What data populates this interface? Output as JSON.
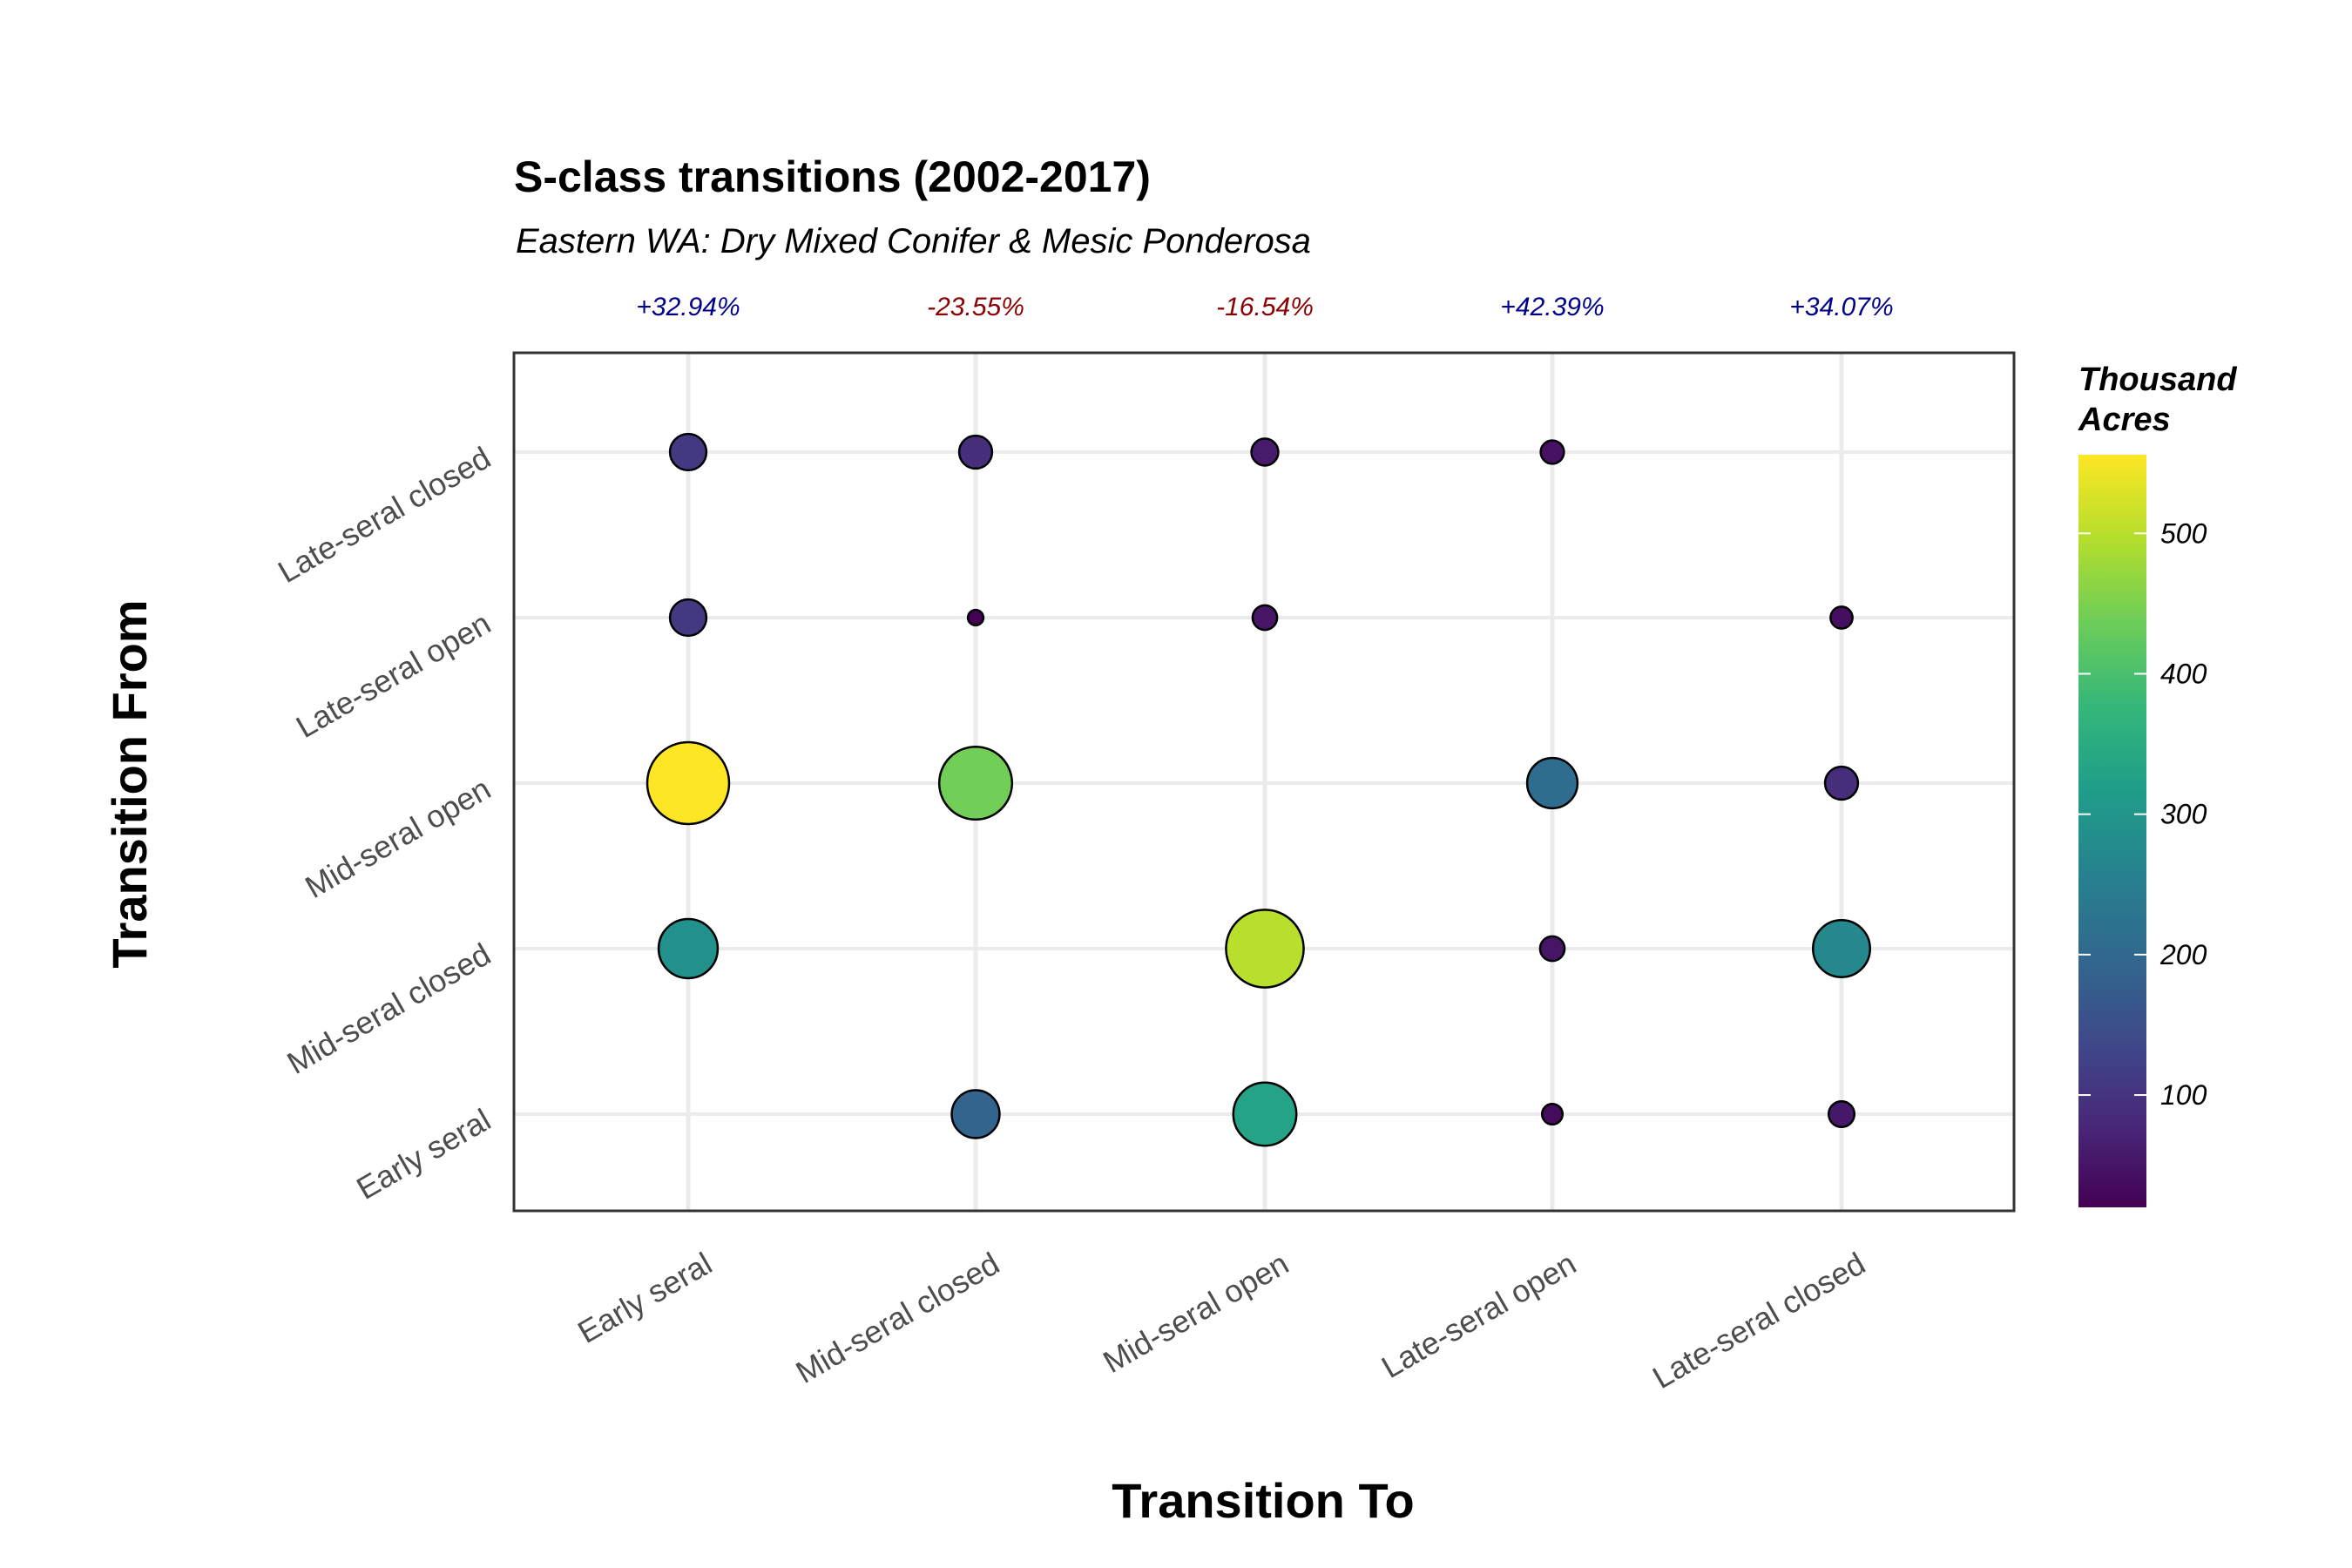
{
  "chart_data": {
    "type": "scatter",
    "title": "S-class transitions (2002-2017)",
    "subtitle": "Eastern WA: Dry Mixed Conifer & Mesic Ponderosa",
    "xlabel": "Transition To",
    "ylabel": "Transition From",
    "x_categories": [
      "Early seral",
      "Mid-seral closed",
      "Mid-seral open",
      "Late-seral open",
      "Late-seral closed"
    ],
    "y_categories": [
      "Early seral",
      "Mid-seral closed",
      "Mid-seral open",
      "Late-seral open",
      "Late-seral closed"
    ],
    "column_change_labels": [
      {
        "text": "+32.94%",
        "color": "#00008b"
      },
      {
        "text": "-23.55%",
        "color": "#8b0000"
      },
      {
        "text": "-16.54%",
        "color": "#8b0000"
      },
      {
        "text": "+42.39%",
        "color": "#00008b"
      },
      {
        "text": "+34.07%",
        "color": "#00008b"
      }
    ],
    "size_and_color_variable": "Thousand Acres",
    "legend": {
      "title_lines": [
        "Thousand",
        "Acres"
      ],
      "ticks": [
        100,
        200,
        300,
        400,
        500
      ],
      "range": [
        20,
        556
      ],
      "palette": [
        "#440154",
        "#482878",
        "#3e4a89",
        "#31688e",
        "#26828e",
        "#1f9e89",
        "#35b779",
        "#6dcd59",
        "#b4de2c",
        "#fde725"
      ],
      "placement": "right"
    },
    "points": [
      {
        "from": "Late-seral closed",
        "to": "Early seral",
        "value": 110
      },
      {
        "from": "Late-seral closed",
        "to": "Mid-seral closed",
        "value": 90
      },
      {
        "from": "Late-seral closed",
        "to": "Mid-seral open",
        "value": 60
      },
      {
        "from": "Late-seral closed",
        "to": "Late-seral open",
        "value": 45
      },
      {
        "from": "Late-seral open",
        "to": "Early seral",
        "value": 110
      },
      {
        "from": "Late-seral open",
        "to": "Mid-seral closed",
        "value": 20
      },
      {
        "from": "Late-seral open",
        "to": "Mid-seral open",
        "value": 50
      },
      {
        "from": "Late-seral open",
        "to": "Late-seral closed",
        "value": 40
      },
      {
        "from": "Mid-seral open",
        "to": "Early seral",
        "value": 556
      },
      {
        "from": "Mid-seral open",
        "to": "Mid-seral closed",
        "value": 440
      },
      {
        "from": "Mid-seral open",
        "to": "Late-seral open",
        "value": 210
      },
      {
        "from": "Mid-seral open",
        "to": "Late-seral closed",
        "value": 90
      },
      {
        "from": "Mid-seral closed",
        "to": "Early seral",
        "value": 290
      },
      {
        "from": "Mid-seral closed",
        "to": "Mid-seral open",
        "value": 500
      },
      {
        "from": "Mid-seral closed",
        "to": "Late-seral open",
        "value": 50
      },
      {
        "from": "Mid-seral closed",
        "to": "Late-seral closed",
        "value": 270
      },
      {
        "from": "Early seral",
        "to": "Mid-seral closed",
        "value": 190
      },
      {
        "from": "Early seral",
        "to": "Mid-seral open",
        "value": 330
      },
      {
        "from": "Early seral",
        "to": "Late-seral open",
        "value": 35
      },
      {
        "from": "Early seral",
        "to": "Late-seral closed",
        "value": 55
      }
    ],
    "grid": true,
    "panel_border": true
  }
}
